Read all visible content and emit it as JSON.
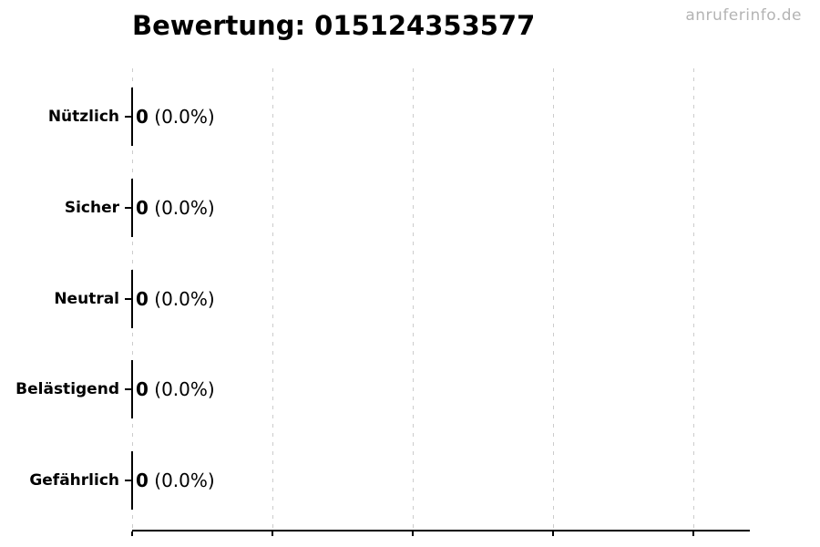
{
  "page": {
    "background": "#ffffff"
  },
  "watermark": {
    "text": "anruferinfo.de",
    "color": "#b4b4b4"
  },
  "chart_data": {
    "type": "bar",
    "orientation": "horizontal",
    "title": "Bewertung: 015124353577",
    "title_align": "left",
    "categories": [
      "Nützlich",
      "Sicher",
      "Neutral",
      "Belästigend",
      "Gefährlich"
    ],
    "values": [
      0,
      0,
      0,
      0,
      0
    ],
    "percent_labels": [
      "0.0%",
      "0.0%",
      "0.0%",
      "0.0%",
      "0.0%"
    ],
    "value_suffixes": [
      " (0.0%)",
      " (0.0%)",
      " (0.0%)",
      " (0.0%)",
      " (0.0%)"
    ],
    "xlabel": "",
    "ylabel": "",
    "xlim": [
      0,
      4.4
    ],
    "x_tick_count": 5,
    "x_tick_labels_visible": false,
    "grid": true,
    "grid_style": "dashed-vertical",
    "legend": "none",
    "colors": {
      "text": "#000000",
      "axis": "#000000",
      "bar_edge": "#000000",
      "grid": "#cccccc"
    }
  }
}
